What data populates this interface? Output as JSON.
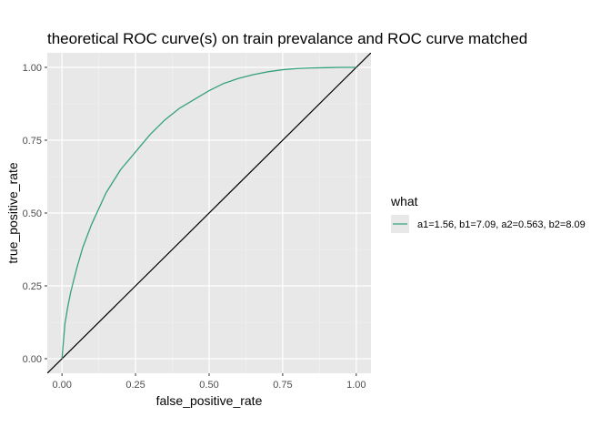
{
  "chart_data": {
    "type": "line",
    "title": "theoretical ROC curve(s) on train prevalance and ROC curve matched",
    "xlabel": "false_positive_rate",
    "ylabel": "true_positive_rate",
    "xlim": [
      -0.05,
      1.05
    ],
    "ylim": [
      -0.05,
      1.05
    ],
    "x_ticks": [
      0.0,
      0.25,
      0.5,
      0.75,
      1.0
    ],
    "x_tick_labels": [
      "0.00",
      "0.25",
      "0.50",
      "0.75",
      "1.00"
    ],
    "y_ticks": [
      0.0,
      0.25,
      0.5,
      0.75,
      1.0
    ],
    "y_tick_labels": [
      "0.00",
      "0.25",
      "0.50",
      "0.75",
      "1.00"
    ],
    "grid": true,
    "panel_background": "#e8e8e8",
    "legend": {
      "title": "what",
      "position": "right",
      "entries": [
        {
          "label": "a1=1.56, b1=7.09, a2=0.563, b2=8.09",
          "color": "#35a17b"
        }
      ]
    },
    "series": [
      {
        "name": "a1=1.56, b1=7.09, a2=0.563, b2=8.09",
        "color": "#35a17b",
        "x": [
          0.0,
          0.01,
          0.02,
          0.03,
          0.05,
          0.07,
          0.1,
          0.15,
          0.2,
          0.25,
          0.3,
          0.35,
          0.4,
          0.45,
          0.5,
          0.55,
          0.6,
          0.65,
          0.7,
          0.75,
          0.8,
          0.85,
          0.9,
          0.95,
          1.0
        ],
        "y": [
          0.0,
          0.12,
          0.18,
          0.23,
          0.31,
          0.38,
          0.46,
          0.57,
          0.65,
          0.71,
          0.77,
          0.82,
          0.86,
          0.89,
          0.92,
          0.945,
          0.962,
          0.975,
          0.985,
          0.992,
          0.996,
          0.998,
          0.999,
          1.0,
          1.0
        ]
      }
    ],
    "reference_line": {
      "slope": 1,
      "intercept": 0,
      "color": "#000000"
    }
  }
}
